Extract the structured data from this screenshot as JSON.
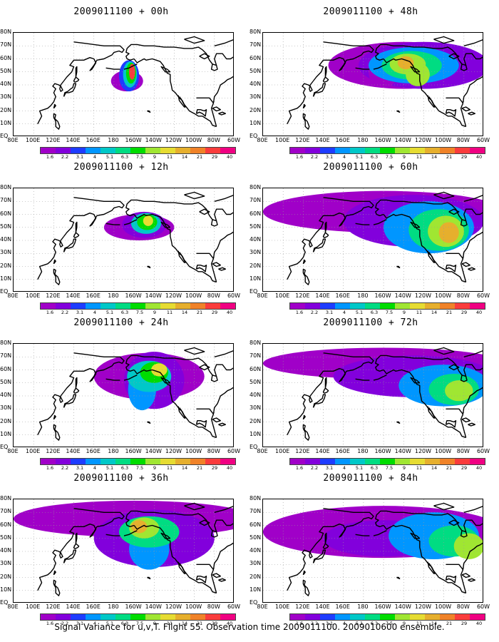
{
  "panels": [
    {
      "title": "2009011100 + 00h",
      "forecast_hour": 0
    },
    {
      "title": "2009011100 + 48h",
      "forecast_hour": 48
    },
    {
      "title": "2009011100 + 12h",
      "forecast_hour": 12
    },
    {
      "title": "2009011100 + 60h",
      "forecast_hour": 60
    },
    {
      "title": "2009011100 + 24h",
      "forecast_hour": 24
    },
    {
      "title": "2009011100 + 72h",
      "forecast_hour": 72
    },
    {
      "title": "2009011100 + 36h",
      "forecast_hour": 36
    },
    {
      "title": "2009011100 + 84h",
      "forecast_hour": 84
    }
  ],
  "lat_labels": [
    "80N",
    "70N",
    "60N",
    "50N",
    "40N",
    "30N",
    "20N",
    "10N",
    "EQ"
  ],
  "lon_labels": [
    "80E",
    "100E",
    "120E",
    "140E",
    "160E",
    "180",
    "160W",
    "140W",
    "120W",
    "100W",
    "80W",
    "60W"
  ],
  "colorbar": {
    "labels": [
      "1.6",
      "2.2",
      "3.1",
      "4",
      "5.1",
      "6.3",
      "7.5",
      "9",
      "11",
      "14",
      "21",
      "29",
      "40"
    ],
    "colors": [
      "#a000c8",
      "#8200dc",
      "#1e3cff",
      "#0096ff",
      "#00c8c8",
      "#00dc82",
      "#00dc00",
      "#a0e632",
      "#e6dc32",
      "#e6af2d",
      "#f08228",
      "#fa3c3c",
      "#f00082"
    ]
  },
  "footer": "Signal Variance for u,v,T. Flight 55. Observation time 2009011100. 2009010600 ensemble."
}
